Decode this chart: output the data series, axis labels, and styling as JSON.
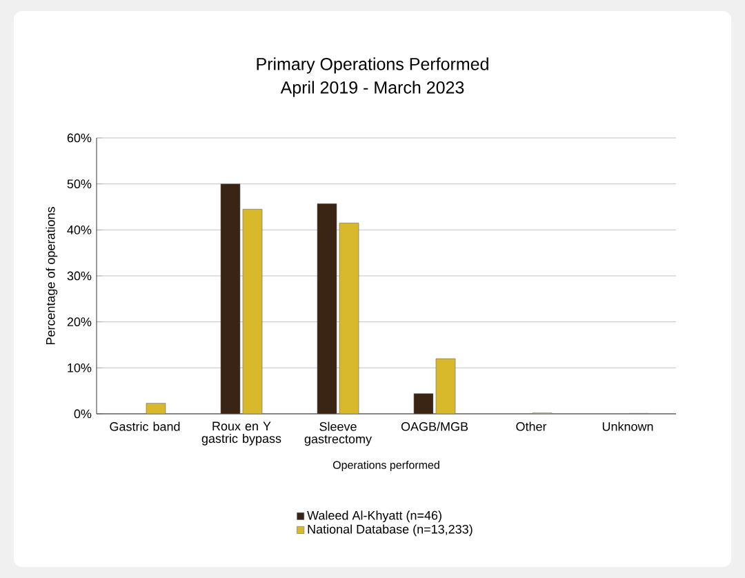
{
  "chart_data": {
    "type": "bar",
    "title": "Primary Operations Performed",
    "subtitle": "April 2019 - March 2023",
    "categories": [
      "Gastric band",
      "Roux en Y gastric bypass",
      "Sleeve gastrectomy",
      "OAGB/MGB",
      "Other",
      "Unknown"
    ],
    "series": [
      {
        "name": "Waleed Al-Khyatt (n=46)",
        "color": "#3a2414",
        "values": [
          null,
          50.0,
          45.7,
          4.4,
          null,
          null
        ]
      },
      {
        "name": "National Database (n=13,233)",
        "color": "#d9b92c",
        "values": [
          2.3,
          44.5,
          41.5,
          12.0,
          0.2,
          0.1
        ]
      }
    ],
    "xlabel": "Operations performed",
    "ylabel": "Percentage of operations",
    "ylim": [
      0,
      60
    ],
    "yticks": [
      {
        "value": 0,
        "label": "0%"
      },
      {
        "value": 10,
        "label": "10%"
      },
      {
        "value": 20,
        "label": "20%"
      },
      {
        "value": 30,
        "label": "30%"
      },
      {
        "value": 40,
        "label": "40%"
      },
      {
        "value": 50,
        "label": "50%"
      },
      {
        "value": 60,
        "label": "60%"
      }
    ],
    "grid": "y",
    "legend": "bottom"
  }
}
